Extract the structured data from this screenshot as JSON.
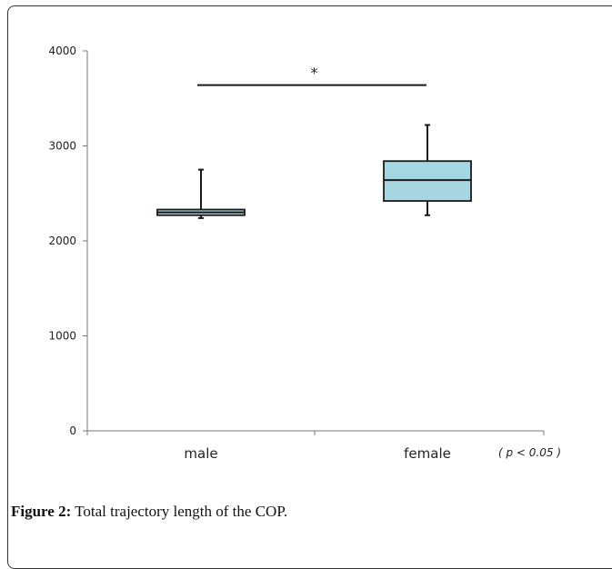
{
  "chart_data": {
    "type": "box",
    "categories": [
      "male",
      "female"
    ],
    "series": [
      {
        "boxes": [
          {
            "category": "male",
            "min": 2240,
            "q1": 2270,
            "median": 2300,
            "q3": 2330,
            "max": 2750
          },
          {
            "category": "female",
            "min": 2270,
            "q1": 2420,
            "median": 2640,
            "q3": 2840,
            "max": 3220
          }
        ]
      }
    ],
    "ylim": [
      0,
      4000
    ],
    "yticks": [
      "0",
      "1000",
      "2000",
      "3000",
      "4000"
    ],
    "grid": false,
    "significance": {
      "from": "male",
      "to": "female",
      "label": "*",
      "y": 3640
    },
    "note": "( p < 0.05 )",
    "box_color": "#a6d6e2"
  },
  "caption": {
    "label": "Figure 2:",
    "text": " Total trajectory length of the COP."
  }
}
